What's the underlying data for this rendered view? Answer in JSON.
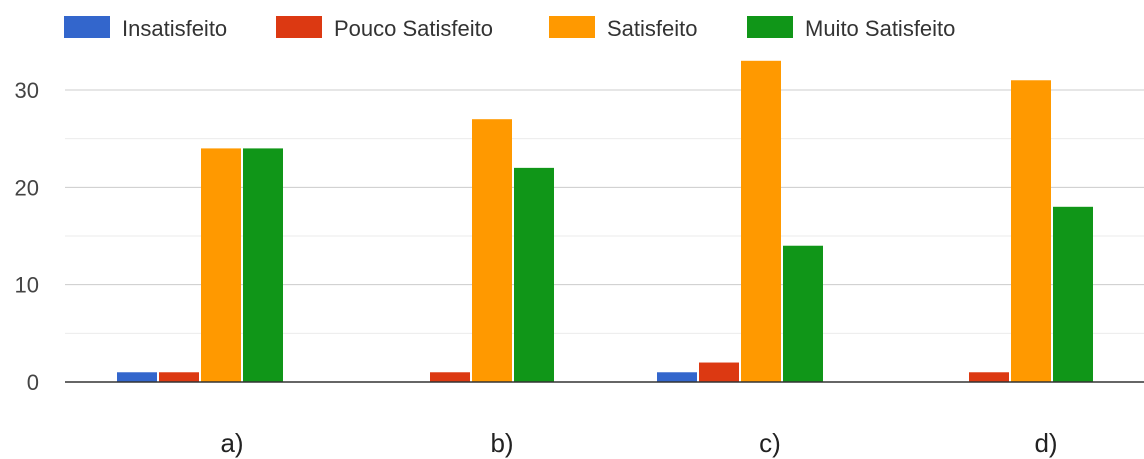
{
  "chart_data": {
    "type": "bar",
    "categories": [
      "a)",
      "b)",
      "c)",
      "d)"
    ],
    "series": [
      {
        "name": "Insatisfeito",
        "color": "#3366cc",
        "values": [
          1,
          0,
          1,
          0
        ]
      },
      {
        "name": "Pouco Satisfeito",
        "color": "#dc3912",
        "values": [
          1,
          1,
          2,
          1
        ]
      },
      {
        "name": "Satisfeito",
        "color": "#ff9900",
        "values": [
          24,
          27,
          33,
          31
        ]
      },
      {
        "name": "Muito Satisfeito",
        "color": "#109618",
        "values": [
          24,
          22,
          14,
          18
        ]
      }
    ],
    "yticks": [
      0,
      10,
      20,
      30
    ],
    "ylim": [
      0,
      35
    ],
    "grid": true,
    "legend_position": "top"
  }
}
